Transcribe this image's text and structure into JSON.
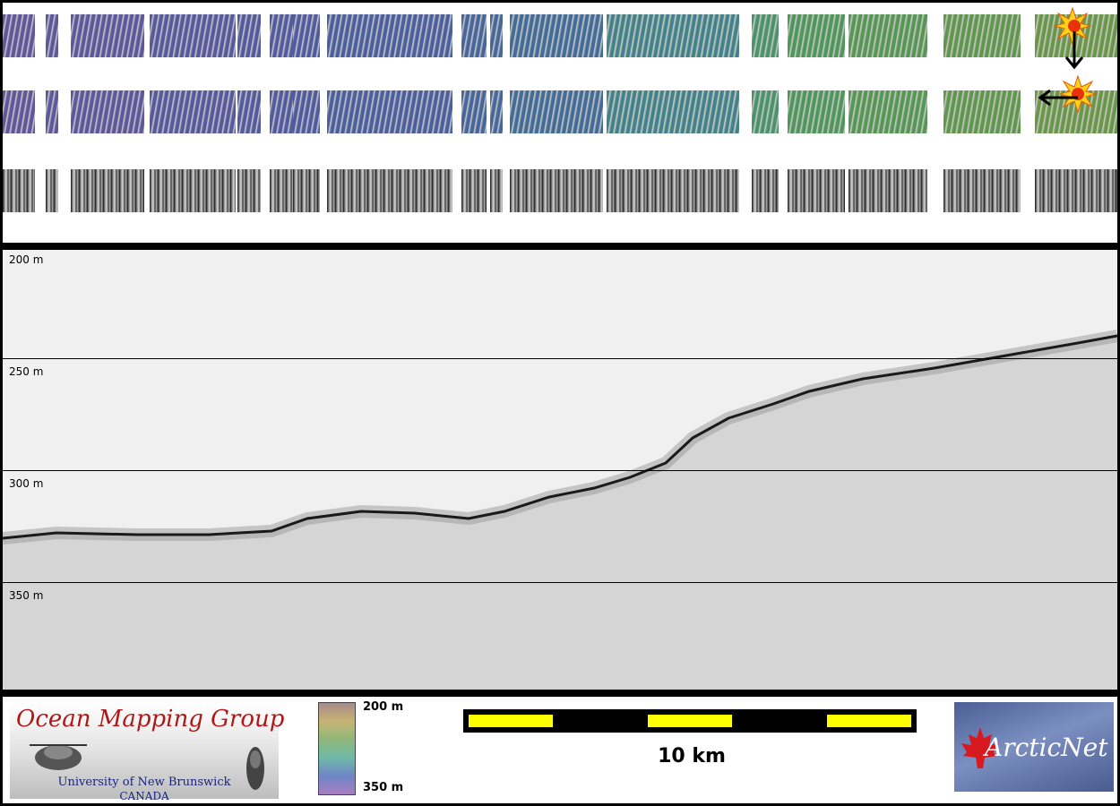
{
  "depth_axis": {
    "labels": [
      "200 m",
      "250 m",
      "300 m",
      "350 m"
    ]
  },
  "legend": {
    "organization_title": "Ocean Mapping Group",
    "organization_sub1": "University of New Brunswick",
    "organization_sub2": "CANADA",
    "colorbar_top": "200 m",
    "colorbar_bottom": "350 m",
    "scale_label": "10 km",
    "partner_logo_text": "ArcticNet"
  },
  "colors": {
    "panel_border": "#000000",
    "scalebar_fill": "#ffff00",
    "seafloor_echo": "#1a1a1a",
    "omg_red": "#b01818",
    "arcticnet_blue": "#4b5f96"
  },
  "icons": [
    "sun-illumination-icon",
    "down-arrow-icon",
    "left-arrow-icon",
    "maple-leaf-icon"
  ]
}
